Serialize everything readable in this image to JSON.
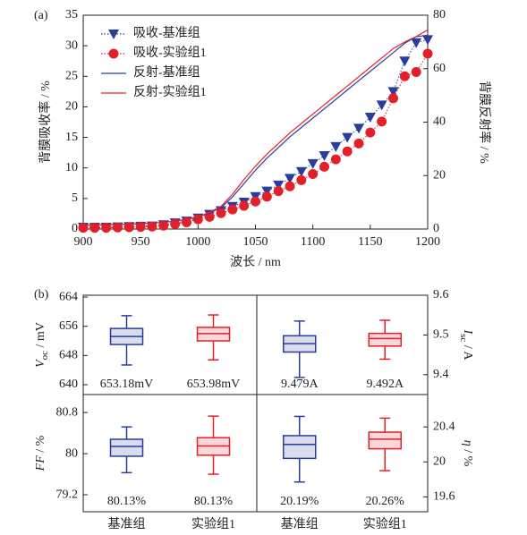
{
  "chart_data": [
    {
      "type": "line",
      "label": "(a)",
      "xlabel": "波长 / nm",
      "ylabel": "背膜吸收率 / %",
      "y2label": "背膜反射率 / %",
      "x": [
        900,
        910,
        920,
        930,
        940,
        950,
        960,
        970,
        980,
        990,
        1000,
        1010,
        1020,
        1030,
        1040,
        1050,
        1060,
        1070,
        1080,
        1090,
        1100,
        1110,
        1120,
        1130,
        1140,
        1150,
        1160,
        1170,
        1180,
        1190,
        1200
      ],
      "xlim": [
        900,
        1200
      ],
      "xticks": [
        900,
        950,
        1000,
        1050,
        1100,
        1150,
        1200
      ],
      "ylim": [
        0,
        35
      ],
      "yticks": [
        0,
        5,
        10,
        15,
        20,
        25,
        30,
        35
      ],
      "y2lim": [
        0,
        80
      ],
      "y2ticks": [
        0,
        20,
        40,
        60,
        80
      ],
      "legend": "upper left",
      "series": [
        {
          "name": "吸收-基准组",
          "color": "#2b3d9c",
          "marker": "triangle",
          "linestyle": "dotted",
          "values": [
            0.3,
            0.3,
            0.3,
            0.35,
            0.4,
            0.45,
            0.5,
            0.7,
            1.0,
            1.3,
            1.8,
            2.4,
            3.0,
            3.7,
            4.4,
            5.3,
            6.2,
            7.2,
            8.3,
            9.4,
            10.7,
            12.0,
            13.5,
            15.0,
            16.5,
            18.3,
            20.3,
            22.5,
            27.5,
            30.5,
            31.0
          ]
        },
        {
          "name": "吸收-实验组1",
          "color": "#e3202a",
          "marker": "circle",
          "linestyle": "dotted",
          "values": [
            0.2,
            0.2,
            0.2,
            0.25,
            0.3,
            0.35,
            0.4,
            0.55,
            0.8,
            1.1,
            1.6,
            2.0,
            2.6,
            3.2,
            3.8,
            4.5,
            5.3,
            6.2,
            7.0,
            8.0,
            9.0,
            10.2,
            11.4,
            12.7,
            14.0,
            15.8,
            17.6,
            21.4,
            25.0,
            25.7,
            28.7
          ]
        },
        {
          "name": "反射-基准组",
          "color": "#2b3d9c",
          "axis": "y2",
          "linestyle": "solid",
          "values": [
            1.5,
            1.5,
            1.6,
            1.7,
            1.8,
            2.0,
            2.2,
            2.5,
            3.0,
            3.6,
            4.5,
            6.0,
            8.0,
            12.0,
            17.0,
            22.0,
            26.5,
            30.5,
            34.5,
            38.0,
            41.5,
            45.0,
            48.5,
            52.0,
            55.5,
            59.0,
            62.5,
            66.0,
            69.5,
            72.0,
            72.5
          ]
        },
        {
          "name": "反射-实验组1",
          "color": "#e3202a",
          "axis": "y2",
          "linestyle": "solid",
          "values": [
            1.5,
            1.5,
            1.6,
            1.7,
            1.8,
            2.0,
            2.2,
            2.5,
            3.0,
            3.6,
            4.6,
            6.2,
            8.5,
            13.0,
            18.5,
            23.5,
            28.0,
            32.0,
            36.0,
            39.5,
            43.0,
            46.5,
            50.0,
            53.5,
            57.0,
            60.5,
            64.0,
            67.5,
            70.0,
            72.0,
            74.5
          ]
        }
      ]
    },
    {
      "type": "box",
      "label": "(b)",
      "ylabel": {
        "symbol": "V",
        "sub": "oc",
        "unit": " / mV"
      },
      "ylim": [
        637.3,
        664.5
      ],
      "yticks": [
        640,
        648,
        656,
        664
      ],
      "boxes": [
        {
          "color": "#2b3d9c",
          "lo": 645.4,
          "q1": 651.0,
          "med": 653.2,
          "q3": 655.4,
          "hi": 658.9
        },
        {
          "color": "#e3202a",
          "lo": 646.8,
          "q1": 652.0,
          "med": 654.0,
          "q3": 655.7,
          "hi": 659.1
        }
      ],
      "annotations": [
        "653.18mV",
        "653.98mV"
      ]
    },
    {
      "type": "box",
      "ylabel": {
        "symbol": "I",
        "sub": "sc",
        "unit": " / A"
      },
      "ylim": [
        9.35,
        9.6
      ],
      "yticks": [
        9.4,
        9.5,
        9.6
      ],
      "boxes": [
        {
          "color": "#2b3d9c",
          "lo": 9.393,
          "q1": 9.457,
          "med": 9.478,
          "q3": 9.498,
          "hi": 9.535
        },
        {
          "color": "#e3202a",
          "lo": 9.439,
          "q1": 9.472,
          "med": 9.491,
          "q3": 9.504,
          "hi": 9.537
        }
      ],
      "annotations": [
        "9.479A",
        "9.492A"
      ]
    },
    {
      "type": "box",
      "ylabel": {
        "symbol": "FF",
        "unit": " / %"
      },
      "ylim": [
        78.87,
        81.15
      ],
      "yticks": [
        79.2,
        80.0,
        80.8
      ],
      "categories": [
        "基准组",
        "实验组1"
      ],
      "boxes": [
        {
          "color": "#2b3d9c",
          "lo": 79.63,
          "q1": 79.95,
          "med": 80.14,
          "q3": 80.28,
          "hi": 80.52
        },
        {
          "color": "#e3202a",
          "lo": 79.6,
          "q1": 79.97,
          "med": 80.15,
          "q3": 80.31,
          "hi": 80.73
        }
      ],
      "annotations": [
        "80.13%",
        "80.13%"
      ]
    },
    {
      "type": "box",
      "ylabel": {
        "symbol": "η",
        "unit": " / %"
      },
      "ylim": [
        19.43,
        20.77
      ],
      "yticks": [
        19.6,
        20.0,
        20.4
      ],
      "categories": [
        "基准组",
        "实验组1"
      ],
      "boxes": [
        {
          "color": "#2b3d9c",
          "lo": 19.77,
          "q1": 20.04,
          "med": 20.2,
          "q3": 20.3,
          "hi": 20.52
        },
        {
          "color": "#e3202a",
          "lo": 19.9,
          "q1": 20.15,
          "med": 20.26,
          "q3": 20.34,
          "hi": 20.5
        }
      ],
      "annotations": [
        "20.19%",
        "20.26%"
      ]
    }
  ]
}
